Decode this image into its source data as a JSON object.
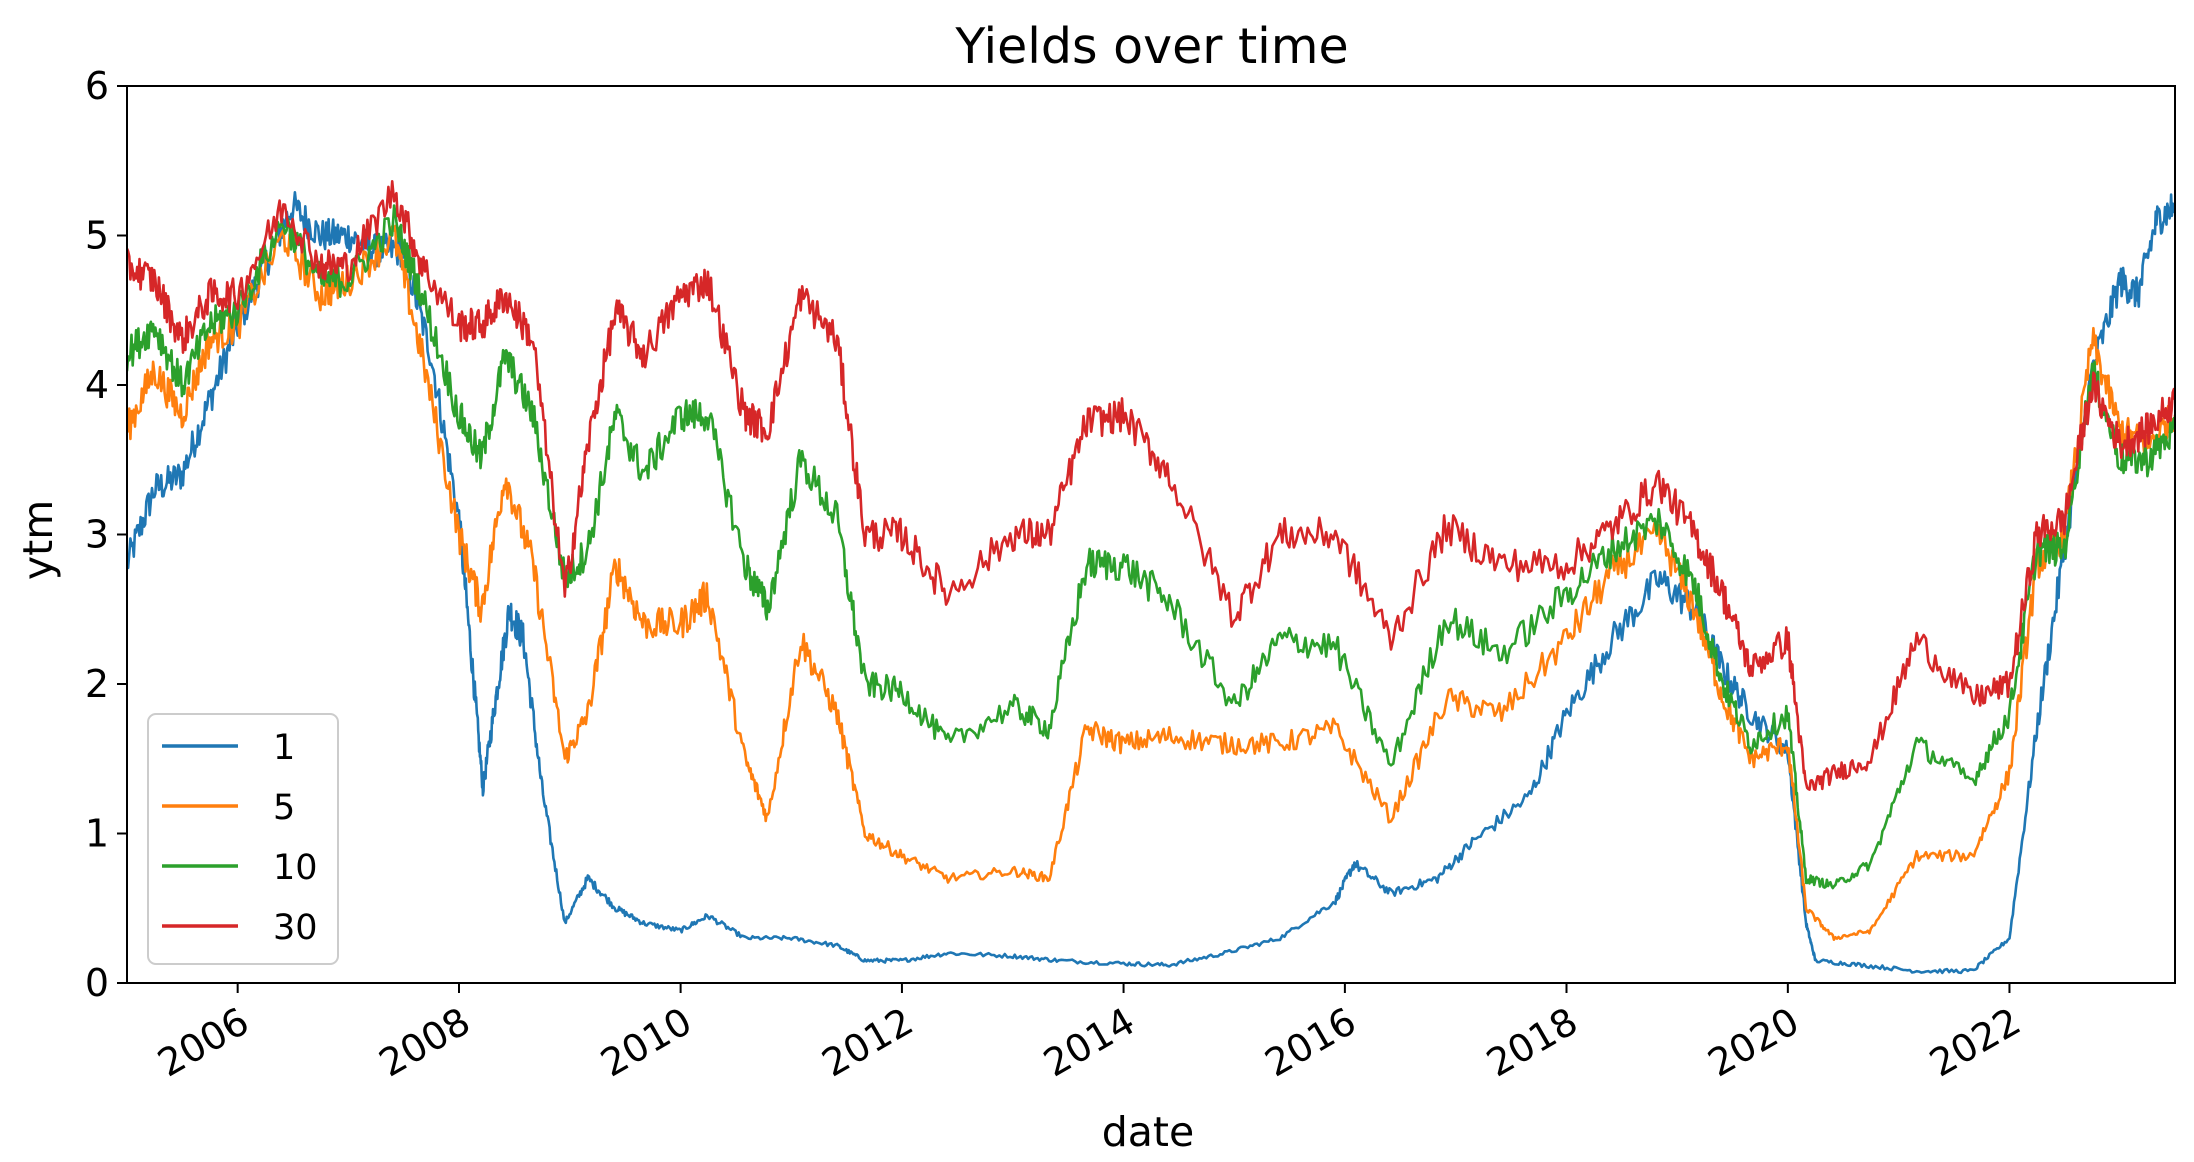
{
  "chart_data": {
    "type": "line",
    "title": "Yields over time",
    "xlabel": "date",
    "ylabel": "ytm",
    "xlim": [
      "2005-01-01",
      "2023-07-01"
    ],
    "ylim": [
      0,
      6
    ],
    "x_ticks": [
      "2006",
      "2008",
      "2010",
      "2012",
      "2014",
      "2016",
      "2018",
      "2020",
      "2022"
    ],
    "y_ticks": [
      "0",
      "1",
      "2",
      "3",
      "4",
      "5",
      "6"
    ],
    "grid": false,
    "legend_position": "lower-left",
    "series": [
      {
        "name": "1",
        "color": "#1f77b4",
        "points": [
          [
            "2005-01-01",
            2.8
          ],
          [
            "2005-04-01",
            3.3
          ],
          [
            "2005-07-01",
            3.4
          ],
          [
            "2005-10-01",
            3.9
          ],
          [
            "2006-01-01",
            4.4
          ],
          [
            "2006-04-01",
            4.8
          ],
          [
            "2006-07-01",
            5.2
          ],
          [
            "2006-10-01",
            5.0
          ],
          [
            "2007-01-01",
            5.0
          ],
          [
            "2007-04-01",
            4.9
          ],
          [
            "2007-07-01",
            4.9
          ],
          [
            "2007-10-01",
            4.2
          ],
          [
            "2008-01-01",
            3.1
          ],
          [
            "2008-02-15",
            2.1
          ],
          [
            "2008-03-20",
            1.3
          ],
          [
            "2008-05-01",
            1.9
          ],
          [
            "2008-06-15",
            2.5
          ],
          [
            "2008-08-01",
            2.3
          ],
          [
            "2008-10-01",
            1.3
          ],
          [
            "2008-12-15",
            0.4
          ],
          [
            "2009-03-01",
            0.7
          ],
          [
            "2009-06-01",
            0.5
          ],
          [
            "2009-09-01",
            0.4
          ],
          [
            "2010-01-01",
            0.35
          ],
          [
            "2010-04-01",
            0.45
          ],
          [
            "2010-08-01",
            0.3
          ],
          [
            "2011-01-01",
            0.3
          ],
          [
            "2011-06-01",
            0.25
          ],
          [
            "2011-09-01",
            0.15
          ],
          [
            "2012-01-01",
            0.15
          ],
          [
            "2012-06-01",
            0.2
          ],
          [
            "2013-01-01",
            0.18
          ],
          [
            "2013-06-01",
            0.15
          ],
          [
            "2014-01-01",
            0.13
          ],
          [
            "2014-06-01",
            0.12
          ],
          [
            "2014-12-01",
            0.2
          ],
          [
            "2015-06-01",
            0.3
          ],
          [
            "2015-12-01",
            0.55
          ],
          [
            "2016-02-01",
            0.8
          ],
          [
            "2016-06-01",
            0.6
          ],
          [
            "2016-11-01",
            0.7
          ],
          [
            "2017-03-01",
            0.95
          ],
          [
            "2017-09-01",
            1.25
          ],
          [
            "2018-01-01",
            1.8
          ],
          [
            "2018-06-01",
            2.3
          ],
          [
            "2018-11-01",
            2.7
          ],
          [
            "2019-03-01",
            2.5
          ],
          [
            "2019-06-01",
            2.1
          ],
          [
            "2019-09-01",
            1.8
          ],
          [
            "2020-01-01",
            1.55
          ],
          [
            "2020-03-01",
            0.4
          ],
          [
            "2020-04-01",
            0.15
          ],
          [
            "2020-09-01",
            0.12
          ],
          [
            "2021-03-01",
            0.08
          ],
          [
            "2021-09-01",
            0.08
          ],
          [
            "2022-01-01",
            0.3
          ],
          [
            "2022-04-01",
            1.7
          ],
          [
            "2022-07-01",
            2.9
          ],
          [
            "2022-10-01",
            4.1
          ],
          [
            "2023-01-01",
            4.7
          ],
          [
            "2023-03-01",
            4.6
          ],
          [
            "2023-05-01",
            5.1
          ],
          [
            "2023-07-01",
            5.2
          ]
        ]
      },
      {
        "name": "5",
        "color": "#ff7f0e",
        "points": [
          [
            "2005-01-01",
            3.7
          ],
          [
            "2005-04-01",
            4.1
          ],
          [
            "2005-07-01",
            3.8
          ],
          [
            "2005-10-01",
            4.3
          ],
          [
            "2006-01-01",
            4.4
          ],
          [
            "2006-06-01",
            5.0
          ],
          [
            "2006-10-01",
            4.6
          ],
          [
            "2007-01-01",
            4.7
          ],
          [
            "2007-06-01",
            5.0
          ],
          [
            "2007-09-01",
            4.2
          ],
          [
            "2008-01-01",
            3.0
          ],
          [
            "2008-03-15",
            2.5
          ],
          [
            "2008-06-01",
            3.4
          ],
          [
            "2008-09-01",
            2.8
          ],
          [
            "2008-12-15",
            1.5
          ],
          [
            "2009-03-01",
            1.8
          ],
          [
            "2009-06-01",
            2.8
          ],
          [
            "2009-09-01",
            2.4
          ],
          [
            "2010-01-01",
            2.4
          ],
          [
            "2010-04-01",
            2.6
          ],
          [
            "2010-08-01",
            1.5
          ],
          [
            "2010-10-15",
            1.1
          ],
          [
            "2011-02-01",
            2.3
          ],
          [
            "2011-06-01",
            1.8
          ],
          [
            "2011-09-01",
            1.0
          ],
          [
            "2012-01-01",
            0.85
          ],
          [
            "2012-06-01",
            0.7
          ],
          [
            "2013-01-01",
            0.75
          ],
          [
            "2013-05-01",
            0.7
          ],
          [
            "2013-09-01",
            1.7
          ],
          [
            "2014-01-01",
            1.6
          ],
          [
            "2014-06-01",
            1.65
          ],
          [
            "2014-12-01",
            1.6
          ],
          [
            "2015-06-01",
            1.6
          ],
          [
            "2015-12-01",
            1.7
          ],
          [
            "2016-06-01",
            1.1
          ],
          [
            "2016-12-01",
            1.9
          ],
          [
            "2017-06-01",
            1.8
          ],
          [
            "2018-01-01",
            2.3
          ],
          [
            "2018-06-01",
            2.75
          ],
          [
            "2018-11-01",
            3.0
          ],
          [
            "2019-03-01",
            2.5
          ],
          [
            "2019-06-01",
            1.9
          ],
          [
            "2019-09-01",
            1.5
          ],
          [
            "2020-01-01",
            1.6
          ],
          [
            "2020-03-01",
            0.5
          ],
          [
            "2020-06-01",
            0.3
          ],
          [
            "2020-10-01",
            0.35
          ],
          [
            "2021-03-01",
            0.85
          ],
          [
            "2021-09-01",
            0.85
          ],
          [
            "2022-01-01",
            1.4
          ],
          [
            "2022-04-01",
            2.8
          ],
          [
            "2022-07-01",
            3.0
          ],
          [
            "2022-10-01",
            4.3
          ],
          [
            "2023-01-01",
            3.7
          ],
          [
            "2023-04-01",
            3.6
          ],
          [
            "2023-07-01",
            3.8
          ]
        ]
      },
      {
        "name": "10",
        "color": "#2ca02c",
        "points": [
          [
            "2005-01-01",
            4.2
          ],
          [
            "2005-04-01",
            4.4
          ],
          [
            "2005-07-01",
            4.0
          ],
          [
            "2005-10-01",
            4.4
          ],
          [
            "2006-01-01",
            4.5
          ],
          [
            "2006-06-01",
            5.1
          ],
          [
            "2006-10-01",
            4.7
          ],
          [
            "2007-01-01",
            4.7
          ],
          [
            "2007-06-01",
            5.1
          ],
          [
            "2007-09-01",
            4.6
          ],
          [
            "2008-01-01",
            3.8
          ],
          [
            "2008-03-15",
            3.5
          ],
          [
            "2008-06-01",
            4.2
          ],
          [
            "2008-09-01",
            3.8
          ],
          [
            "2008-12-15",
            2.7
          ],
          [
            "2009-03-01",
            2.9
          ],
          [
            "2009-06-01",
            3.8
          ],
          [
            "2009-09-01",
            3.4
          ],
          [
            "2010-01-01",
            3.8
          ],
          [
            "2010-04-01",
            3.8
          ],
          [
            "2010-08-01",
            2.8
          ],
          [
            "2010-10-15",
            2.5
          ],
          [
            "2011-02-01",
            3.5
          ],
          [
            "2011-06-01",
            3.1
          ],
          [
            "2011-09-01",
            2.0
          ],
          [
            "2012-01-01",
            1.95
          ],
          [
            "2012-06-01",
            1.6
          ],
          [
            "2013-01-01",
            1.85
          ],
          [
            "2013-05-01",
            1.7
          ],
          [
            "2013-09-01",
            2.8
          ],
          [
            "2014-01-01",
            2.8
          ],
          [
            "2014-06-01",
            2.55
          ],
          [
            "2015-01-01",
            1.85
          ],
          [
            "2015-06-01",
            2.3
          ],
          [
            "2015-12-01",
            2.25
          ],
          [
            "2016-06-01",
            1.45
          ],
          [
            "2016-12-01",
            2.45
          ],
          [
            "2017-06-01",
            2.2
          ],
          [
            "2018-01-01",
            2.6
          ],
          [
            "2018-06-01",
            2.9
          ],
          [
            "2018-11-01",
            3.1
          ],
          [
            "2019-03-01",
            2.65
          ],
          [
            "2019-06-01",
            2.0
          ],
          [
            "2019-09-01",
            1.6
          ],
          [
            "2020-01-01",
            1.8
          ],
          [
            "2020-03-01",
            0.7
          ],
          [
            "2020-06-01",
            0.65
          ],
          [
            "2020-10-01",
            0.8
          ],
          [
            "2021-03-01",
            1.6
          ],
          [
            "2021-09-01",
            1.35
          ],
          [
            "2022-01-01",
            1.8
          ],
          [
            "2022-04-01",
            2.9
          ],
          [
            "2022-07-01",
            2.9
          ],
          [
            "2022-10-01",
            4.1
          ],
          [
            "2023-01-01",
            3.5
          ],
          [
            "2023-04-01",
            3.5
          ],
          [
            "2023-07-01",
            3.7
          ]
        ]
      },
      {
        "name": "30",
        "color": "#d62728",
        "points": [
          [
            "2005-01-01",
            4.8
          ],
          [
            "2005-04-01",
            4.7
          ],
          [
            "2005-07-01",
            4.3
          ],
          [
            "2005-10-01",
            4.6
          ],
          [
            "2006-01-01",
            4.6
          ],
          [
            "2006-06-01",
            5.2
          ],
          [
            "2006-10-01",
            4.8
          ],
          [
            "2007-01-01",
            4.8
          ],
          [
            "2007-06-01",
            5.3
          ],
          [
            "2007-09-01",
            4.8
          ],
          [
            "2008-01-01",
            4.4
          ],
          [
            "2008-03-15",
            4.4
          ],
          [
            "2008-06-01",
            4.6
          ],
          [
            "2008-09-01",
            4.3
          ],
          [
            "2008-12-15",
            2.6
          ],
          [
            "2009-03-01",
            3.6
          ],
          [
            "2009-06-01",
            4.5
          ],
          [
            "2009-09-01",
            4.2
          ],
          [
            "2010-01-01",
            4.6
          ],
          [
            "2010-04-01",
            4.7
          ],
          [
            "2010-08-01",
            3.8
          ],
          [
            "2010-10-15",
            3.7
          ],
          [
            "2011-02-01",
            4.6
          ],
          [
            "2011-06-01",
            4.3
          ],
          [
            "2011-09-01",
            3.0
          ],
          [
            "2012-01-01",
            3.0
          ],
          [
            "2012-06-01",
            2.6
          ],
          [
            "2013-01-01",
            3.0
          ],
          [
            "2013-05-01",
            3.0
          ],
          [
            "2013-09-01",
            3.75
          ],
          [
            "2014-01-01",
            3.8
          ],
          [
            "2014-06-01",
            3.4
          ],
          [
            "2015-01-01",
            2.45
          ],
          [
            "2015-06-01",
            3.0
          ],
          [
            "2015-12-01",
            3.0
          ],
          [
            "2016-06-01",
            2.3
          ],
          [
            "2016-12-01",
            3.05
          ],
          [
            "2017-06-01",
            2.8
          ],
          [
            "2018-01-01",
            2.8
          ],
          [
            "2018-06-01",
            3.05
          ],
          [
            "2018-11-01",
            3.35
          ],
          [
            "2019-03-01",
            3.0
          ],
          [
            "2019-06-01",
            2.6
          ],
          [
            "2019-09-01",
            2.1
          ],
          [
            "2020-01-01",
            2.3
          ],
          [
            "2020-03-01",
            1.3
          ],
          [
            "2020-06-01",
            1.4
          ],
          [
            "2020-10-01",
            1.5
          ],
          [
            "2021-03-01",
            2.3
          ],
          [
            "2021-09-01",
            1.9
          ],
          [
            "2022-01-01",
            2.0
          ],
          [
            "2022-04-01",
            3.0
          ],
          [
            "2022-07-01",
            3.1
          ],
          [
            "2022-10-01",
            4.0
          ],
          [
            "2023-01-01",
            3.6
          ],
          [
            "2023-04-01",
            3.7
          ],
          [
            "2023-07-01",
            3.9
          ]
        ]
      }
    ]
  }
}
